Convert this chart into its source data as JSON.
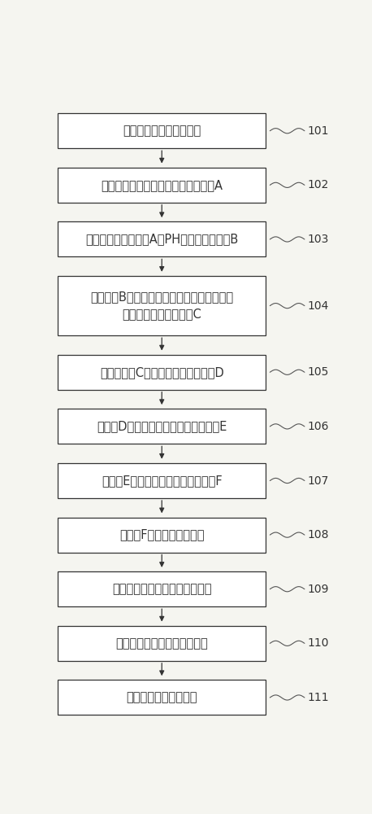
{
  "steps": [
    {
      "id": "101",
      "text": "将小麦粉碎，得到小麦粉",
      "lines": 1
    },
    {
      "id": "102",
      "text": "将小麦粉与水混合溶解，得到溶解液A",
      "lines": 1
    },
    {
      "id": "103",
      "text": "加热同时调节溶解液A的PH値，得到溶解液B",
      "lines": 1
    },
    {
      "id": "104",
      "text": "向溶解液B中加入复合蛋白酶，在相同温度下\n静置水解，得到溶解液C",
      "lines": 2
    },
    {
      "id": "105",
      "text": "虹吸溶解液C的上层清液，得到溶液D",
      "lines": 1
    },
    {
      "id": "106",
      "text": "将溶液D进行机械保压过滤，得到溶液E",
      "lines": 1
    },
    {
      "id": "107",
      "text": "将溶液E进行沉淠和精滤，得到溶液F",
      "lines": 1
    },
    {
      "id": "108",
      "text": "将溶液F超滤，得到超滤液",
      "lines": 1
    },
    {
      "id": "109",
      "text": "将超滤液真空浓缩，得到浓缩液",
      "lines": 1
    },
    {
      "id": "110",
      "text": "将浓缩液喷雾干燥，得到样品",
      "lines": 1
    },
    {
      "id": "111",
      "text": "样品抜检包装得到成品",
      "lines": 1
    }
  ],
  "box_color": "#ffffff",
  "box_edge_color": "#333333",
  "arrow_color": "#333333",
  "label_color": "#333333",
  "background_color": "#f5f5f0",
  "font_size": 10.5,
  "label_font_size": 10,
  "fig_width": 4.58,
  "fig_height": 10.0
}
